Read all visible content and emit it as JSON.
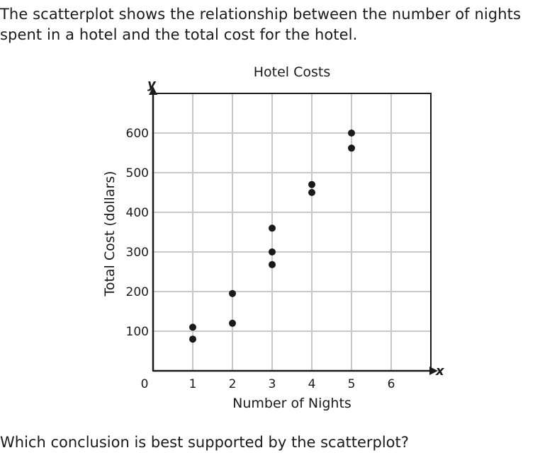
{
  "intro_text": "The scatterplot shows the relationship between the number of nights spent in a hotel and the total cost for the hotel.",
  "question_text": "Which conclusion is best supported by the scatterplot?",
  "chart_data": {
    "type": "scatter",
    "title": "Hotel Costs",
    "xlabel": "Number of Nights",
    "ylabel": "Total Cost (dollars)",
    "x_axis_letter": "x",
    "y_axis_letter": "y",
    "origin_label": "0",
    "xlim": [
      0,
      7
    ],
    "ylim": [
      0,
      700
    ],
    "x_ticks": [
      1,
      2,
      3,
      4,
      5,
      6
    ],
    "y_ticks": [
      100,
      200,
      300,
      400,
      500,
      600
    ],
    "grid": true,
    "points": [
      {
        "x": 1,
        "y": 110
      },
      {
        "x": 1,
        "y": 80
      },
      {
        "x": 2,
        "y": 195
      },
      {
        "x": 2,
        "y": 120
      },
      {
        "x": 3,
        "y": 360
      },
      {
        "x": 3,
        "y": 300
      },
      {
        "x": 3,
        "y": 268
      },
      {
        "x": 4,
        "y": 470
      },
      {
        "x": 4,
        "y": 450
      },
      {
        "x": 5,
        "y": 600
      },
      {
        "x": 5,
        "y": 562
      }
    ],
    "colors": {
      "point": "#1a1a1a",
      "grid": "#c8c8c8",
      "axis": "#1a1a1a"
    }
  }
}
